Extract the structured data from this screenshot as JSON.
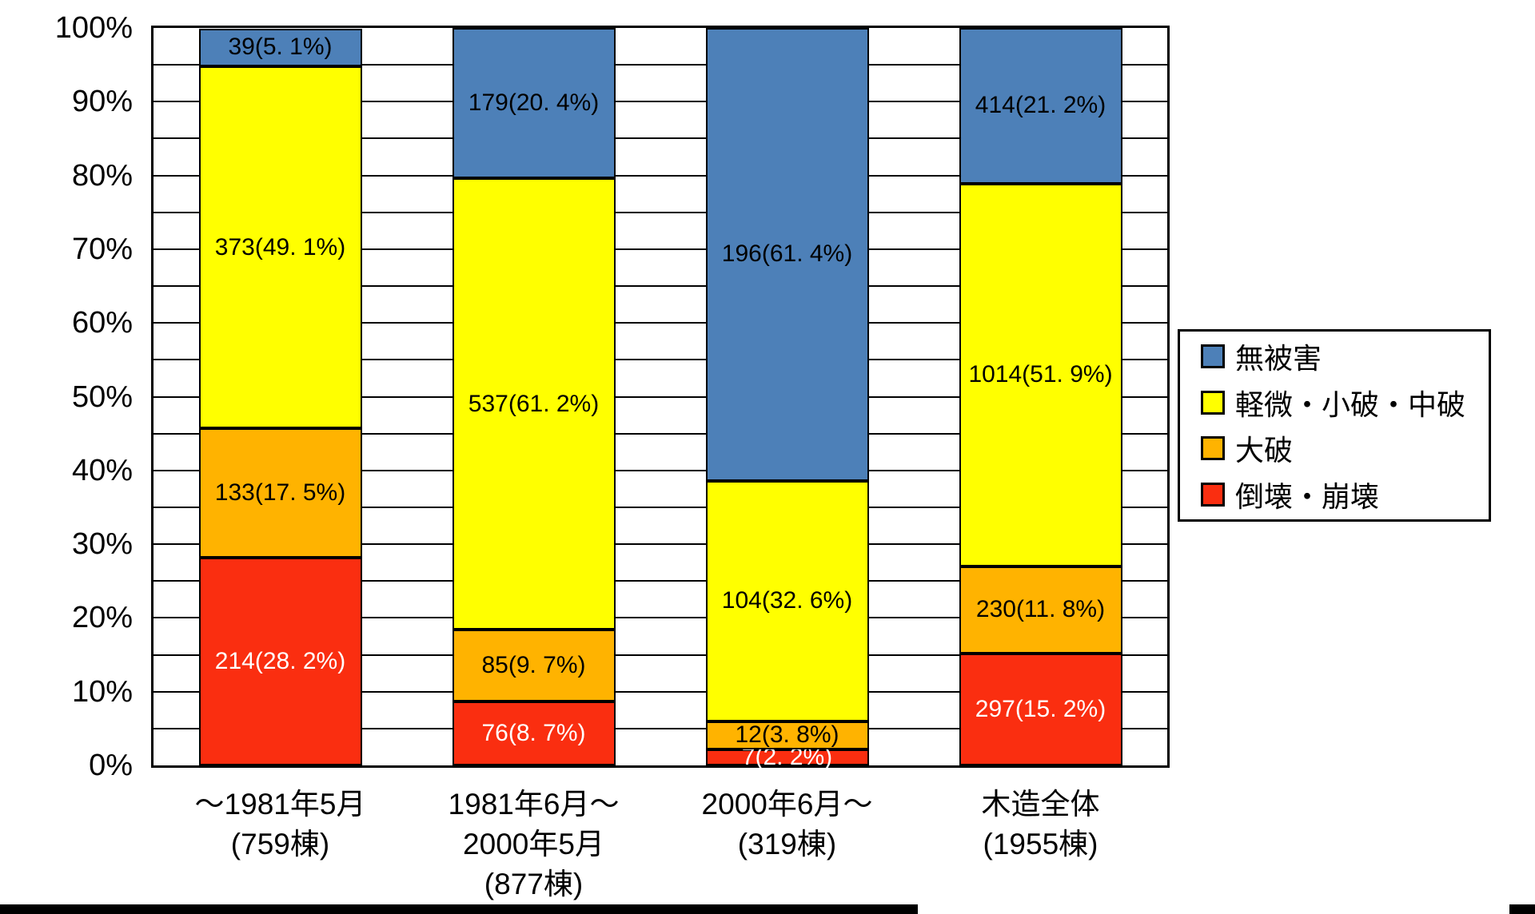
{
  "page": {
    "background": "#FFFFFF"
  },
  "chart_data": {
    "type": "bar",
    "subtype": "stacked-100-percent-column",
    "title": "",
    "xlabel": "",
    "ylabel": "",
    "y_axis": {
      "min": 0,
      "max": 100,
      "unit": "%",
      "ticks": [
        "0%",
        "10%",
        "20%",
        "30%",
        "40%",
        "50%",
        "60%",
        "70%",
        "80%",
        "90%",
        "100%"
      ],
      "gridline_step": 5,
      "grid_color": "#000000"
    },
    "legend_position": "right",
    "categories": [
      {
        "lines": [
          "～1981年5月",
          "(759棟)"
        ],
        "total_label": "(759棟)",
        "total": 759
      },
      {
        "lines": [
          "1981年6月～",
          "2000年5月",
          "(877棟)"
        ],
        "total_label": "(877棟)",
        "total": 877
      },
      {
        "lines": [
          "2000年6月～",
          "(319棟)"
        ],
        "total_label": "(319棟)",
        "total": 319
      },
      {
        "lines": [
          "木造全体",
          "(1955棟)"
        ],
        "total_label": "(1955棟)",
        "total": 1955
      }
    ],
    "series": [
      {
        "name": "倒壊・崩壊",
        "color": "#FA2E10",
        "label_color": "#FFFFFF",
        "values": [
          214,
          76,
          7,
          297
        ],
        "pcts": [
          28.2,
          8.7,
          2.2,
          15.2
        ],
        "labels": [
          "214(28. 2%)",
          "76(8. 7%)",
          "7(2. 2%)",
          "297(15. 2%)"
        ]
      },
      {
        "name": "大破",
        "color": "#FFB300",
        "label_color": "#000000",
        "values": [
          133,
          85,
          12,
          230
        ],
        "pcts": [
          17.5,
          9.7,
          3.8,
          11.8
        ],
        "labels": [
          "133(17. 5%)",
          "85(9. 7%)",
          "12(3. 8%)",
          "230(11. 8%)"
        ]
      },
      {
        "name": "軽微・小破・中破",
        "color": "#FFFF00",
        "label_color": "#000000",
        "values": [
          373,
          537,
          104,
          1014
        ],
        "pcts": [
          49.1,
          61.2,
          32.6,
          51.9
        ],
        "labels": [
          "373(49. 1%)",
          "537(61. 2%)",
          "104(32. 6%)",
          "1014(51. 9%)"
        ]
      },
      {
        "name": "無被害",
        "color": "#4D80B8",
        "label_color": "#000000",
        "values": [
          39,
          179,
          196,
          414
        ],
        "pcts": [
          5.1,
          20.4,
          61.4,
          21.2
        ],
        "labels": [
          "39(5. 1%)",
          "179(20. 4%)",
          "196(61. 4%)",
          "414(21. 2%)"
        ]
      }
    ],
    "legend": [
      {
        "label": "無被害",
        "color": "#4D80B8"
      },
      {
        "label": "軽微・小破・中破",
        "color": "#FFFF00"
      },
      {
        "label": "大破",
        "color": "#FFB300"
      },
      {
        "label": "倒壊・崩壊",
        "color": "#FA2E10"
      }
    ]
  },
  "decor": {
    "bottom_bar_color": "#000000"
  }
}
